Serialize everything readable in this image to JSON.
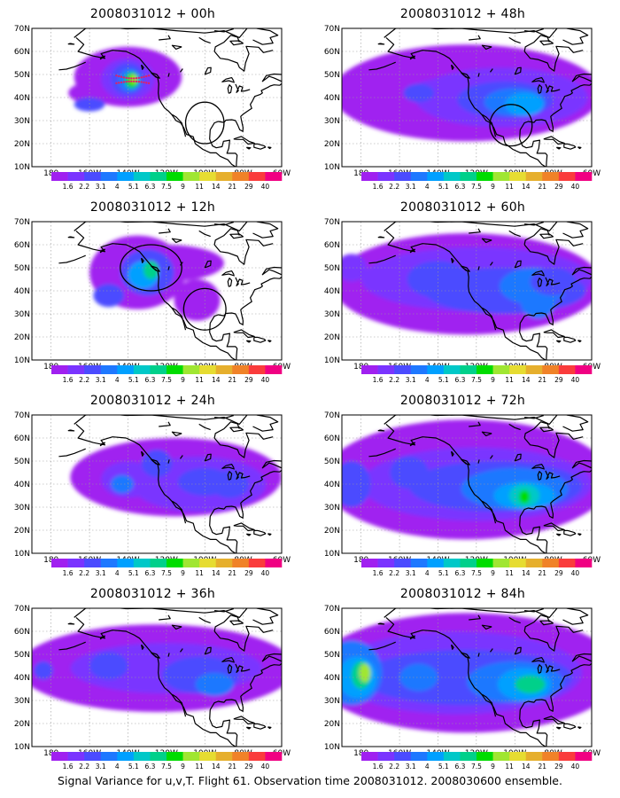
{
  "panels": [
    {
      "title": "2008031012 + 00h"
    },
    {
      "title": "2008031012 + 48h"
    },
    {
      "title": "2008031012 + 12h"
    },
    {
      "title": "2008031012 + 60h"
    },
    {
      "title": "2008031012 + 24h"
    },
    {
      "title": "2008031012 + 72h"
    },
    {
      "title": "2008031012 + 36h"
    },
    {
      "title": "2008031012 + 84h"
    }
  ],
  "axes": {
    "lat_labels": [
      "70N",
      "60N",
      "50N",
      "40N",
      "30N",
      "20N",
      "10N"
    ],
    "lon_labels": [
      "180",
      "160W",
      "140W",
      "120W",
      "100W",
      "80W",
      "60W"
    ]
  },
  "colorbar": {
    "labels": [
      "1.6",
      "2.2",
      "3.1",
      "4",
      "5.1",
      "6.3",
      "7.5",
      "9",
      "11",
      "14",
      "21",
      "29",
      "40"
    ],
    "colors": [
      "#a020f0",
      "#7a34ff",
      "#4b4bff",
      "#1e78ff",
      "#00a0ff",
      "#00c8c8",
      "#00d08a",
      "#00dc00",
      "#a0e632",
      "#e6dc32",
      "#e6af2d",
      "#f08228",
      "#fa3c3c",
      "#f00082"
    ]
  },
  "footer": "Signal Variance for u,v,T. Flight 61. Observation time 2008031012. 2008030600 ensemble."
}
